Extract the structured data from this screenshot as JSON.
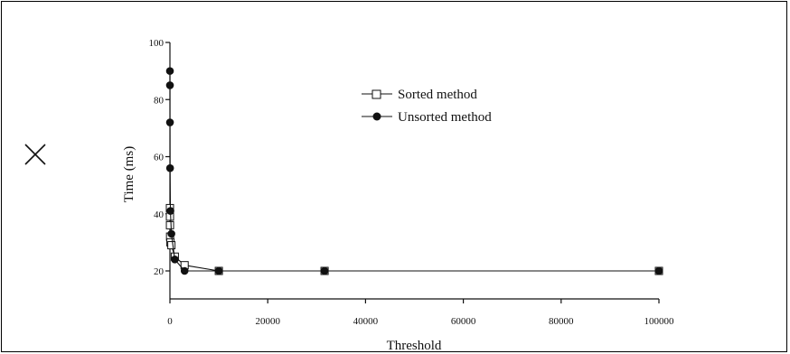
{
  "panel": {
    "close_icon": "close-x-icon"
  },
  "chart_data": {
    "type": "line",
    "xlabel": "Threshold",
    "ylabel": "Time (ms)",
    "xlim": [
      0,
      100000
    ],
    "ylim": [
      10,
      100
    ],
    "x_ticks": [
      0,
      20000,
      40000,
      60000,
      80000,
      100000
    ],
    "y_ticks": [
      20,
      40,
      60,
      80,
      100
    ],
    "legend_placement": "upper-center-right",
    "grid": false,
    "series": [
      {
        "name": "Sorted method",
        "marker": "open-square",
        "x": [
          1,
          3,
          10,
          30,
          100,
          300,
          1000,
          3000,
          10000,
          31623,
          100000
        ],
        "y": [
          42,
          39,
          36,
          32,
          30,
          29,
          25,
          22,
          20,
          20,
          20
        ]
      },
      {
        "name": "Unsorted method",
        "marker": "filled-circle",
        "x": [
          1,
          3,
          10,
          30,
          100,
          300,
          1000,
          3000,
          10000,
          31623,
          100000
        ],
        "y": [
          90,
          85,
          72,
          56,
          41,
          33,
          24,
          20,
          20,
          20,
          20
        ]
      }
    ]
  }
}
